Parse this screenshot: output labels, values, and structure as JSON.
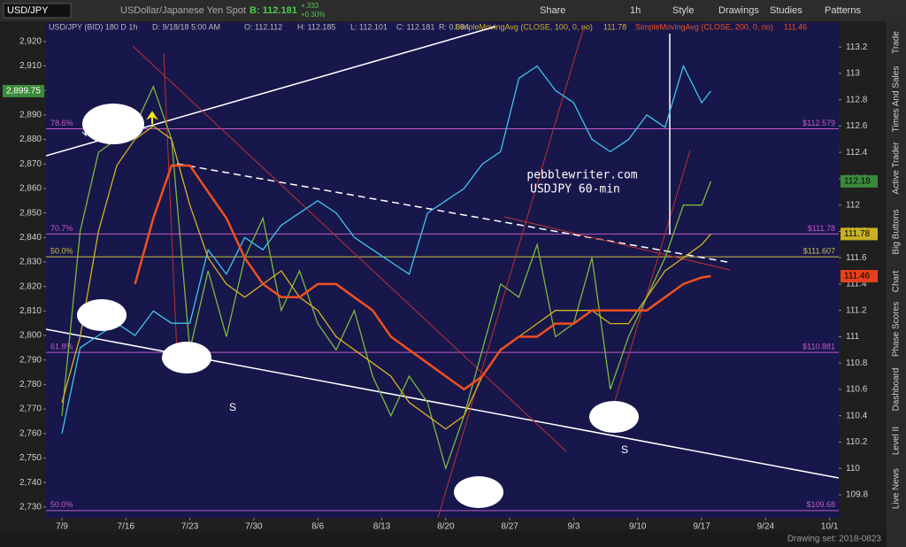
{
  "toolbar": {
    "description": "USDollar/Japanese Yen Spot",
    "bid": "B: 112.181",
    "change": "+.333",
    "change_pct": "+0.30%",
    "buttons": [
      "Share",
      "1h",
      "Style",
      "Drawings",
      "Studies",
      "Patterns"
    ]
  },
  "sidebar": {
    "tabs": [
      "Trade",
      "Times And Sales",
      "Active Trader",
      "Big Buttons",
      "Chart",
      "Phase Scores",
      "Dashboard",
      "Level II",
      "Live News"
    ]
  },
  "footer": {
    "drawing_set": "Drawing set: 2018-0823"
  },
  "chart_data": {
    "type": "line",
    "info": [
      "USD/JPY (BID) 180 D 1h",
      "D: 9/18/18 5:00 AM",
      "O: 112.112",
      "H: 112.185",
      "L: 112.101",
      "C: 112.181",
      "R: 0.084"
    ],
    "annotations": [
      "pebblewriter.com",
      "USDJPY 60-min",
      "S",
      "S"
    ],
    "x": [
      0,
      2,
      4,
      6,
      8,
      10,
      12,
      14,
      16,
      18,
      20,
      22,
      24,
      26,
      28,
      30,
      32,
      34,
      36,
      38,
      40,
      42,
      44,
      46,
      48,
      50,
      52,
      54,
      56,
      58,
      60,
      62,
      64,
      66,
      68,
      70,
      71
    ],
    "xlim": [
      -1.74,
      85
    ],
    "xticks": [
      {
        "value": 0,
        "label": "7/9"
      },
      {
        "value": 7,
        "label": "7/16"
      },
      {
        "value": 14,
        "label": "7/23"
      },
      {
        "value": 21,
        "label": "7/30"
      },
      {
        "value": 28,
        "label": "8/6"
      },
      {
        "value": 35,
        "label": "8/13"
      },
      {
        "value": 42,
        "label": "8/20"
      },
      {
        "value": 49,
        "label": "8/27"
      },
      {
        "value": 56,
        "label": "9/3"
      },
      {
        "value": 63,
        "label": "9/10"
      },
      {
        "value": 70,
        "label": "9/17"
      },
      {
        "value": 77,
        "label": "9/24"
      },
      {
        "value": 84,
        "label": "10/1"
      }
    ],
    "ylim": [
      2725.6,
      2927.9
    ],
    "yticks": [
      {
        "value": 2730,
        "label": "2,730"
      },
      {
        "value": 2740,
        "label": "2,740"
      },
      {
        "value": 2750,
        "label": "2,750"
      },
      {
        "value": 2760,
        "label": "2,760"
      },
      {
        "value": 2770,
        "label": "2,770"
      },
      {
        "value": 2780,
        "label": "2,780"
      },
      {
        "value": 2790,
        "label": "2,790"
      },
      {
        "value": 2800,
        "label": "2,800"
      },
      {
        "value": 2810,
        "label": "2,810"
      },
      {
        "value": 2820,
        "label": "2,820"
      },
      {
        "value": 2830,
        "label": "2,830"
      },
      {
        "value": 2840,
        "label": "2,840"
      },
      {
        "value": 2850,
        "label": "2,850"
      },
      {
        "value": 2860,
        "label": "2,860"
      },
      {
        "value": 2870,
        "label": "2,870"
      },
      {
        "value": 2880,
        "label": "2,880"
      },
      {
        "value": 2890,
        "label": "2,890"
      },
      {
        "value": 2900,
        "label": "2,900"
      },
      {
        "value": 2910,
        "label": "2,910"
      },
      {
        "value": 2920,
        "label": "2,920"
      }
    ],
    "y2lim": [
      109.625,
      113.389
    ],
    "y2ticks": [
      109.8,
      110,
      110.2,
      110.4,
      110.6,
      110.8,
      111,
      111.2,
      111.4,
      111.6,
      111.8,
      112,
      112.2,
      112.4,
      112.6,
      112.8,
      113,
      113.2
    ],
    "grid": false,
    "series": [
      {
        "color": "#3fc4ee",
        "values": [
          2760,
          2795,
          2800,
          2805,
          2800,
          2810,
          2805,
          2805,
          2835,
          2825,
          2840,
          2835,
          2845,
          2850,
          2855,
          2850,
          2840,
          2835,
          2830,
          2825,
          2850,
          2855,
          2860,
          2870,
          2875,
          2905,
          2910,
          2900,
          2895,
          2880,
          2875,
          2880,
          2890,
          2885,
          2910,
          2895,
          2899.75
        ]
      },
      {
        "name": "USD/JPY",
        "axis": "y2",
        "color": "#7cb83a",
        "values": [
          110.4,
          111.8,
          112.4,
          112.5,
          112.6,
          112.9,
          112.5,
          110.9,
          111.5,
          111.0,
          111.6,
          111.9,
          111.2,
          111.5,
          111.1,
          110.9,
          111.2,
          110.7,
          110.4,
          110.7,
          110.5,
          110.0,
          110.4,
          110.9,
          111.4,
          111.3,
          111.7,
          111.0,
          111.1,
          111.6,
          110.6,
          111.0,
          111.3,
          111.6,
          112.0,
          112.0,
          112.18
        ]
      },
      {
        "name": "SimpleMovingAvg (CLOSE, 100, 0, no)",
        "axis": "y2",
        "color": "#d6b222",
        "values": [
          110.5,
          111.0,
          111.8,
          112.3,
          112.5,
          112.6,
          112.5,
          112.0,
          111.6,
          111.4,
          111.3,
          111.4,
          111.5,
          111.3,
          111.2,
          111.0,
          110.9,
          110.8,
          110.7,
          110.5,
          110.4,
          110.3,
          110.4,
          110.7,
          110.9,
          111.0,
          111.1,
          111.2,
          111.2,
          111.2,
          111.1,
          111.1,
          111.3,
          111.5,
          111.6,
          111.7,
          111.78
        ]
      },
      {
        "name": "SimpleMovingAvg (CLOSE, 200, 0, no)",
        "axis": "y2",
        "color": "#f0501e",
        "values": [
          null,
          null,
          null,
          null,
          111.4,
          111.9,
          112.3,
          112.3,
          112.1,
          111.9,
          111.6,
          111.4,
          111.3,
          111.3,
          111.4,
          111.4,
          111.3,
          111.2,
          111.0,
          110.9,
          110.8,
          110.7,
          110.6,
          110.7,
          110.9,
          111.0,
          111.0,
          111.1,
          111.1,
          111.2,
          111.2,
          111.2,
          111.2,
          111.3,
          111.4,
          111.45,
          111.46
        ]
      }
    ],
    "levels": [
      {
        "label": "78.6%",
        "value": 112.579,
        "price_label": "$112.579",
        "color": "#c25cc8"
      },
      {
        "label": "70.7%",
        "value": 111.78,
        "price_label": "$111.78",
        "color": "#c25cc8"
      },
      {
        "label": "50.0%",
        "value": 111.607,
        "price_label": "$111.607",
        "color": "#c8c040"
      },
      {
        "label": "61.8%",
        "value": 110.881,
        "price_label": "$110.881",
        "color": "#c25cc8"
      },
      {
        "label": "50.0%",
        "value": 109.68,
        "price_label": "$109.68",
        "color": "#c25cc8"
      }
    ],
    "badges": [
      {
        "value": 2899.75,
        "label": "2,899.75",
        "color": "#3b8a3b"
      },
      {
        "value": 112.18,
        "label": "112.18",
        "axis": "y2",
        "color": "#3b8a3b"
      },
      {
        "value": 111.78,
        "label": "111.78",
        "axis": "y2",
        "color": "#c8b020"
      },
      {
        "value": 111.46,
        "label": "111.46",
        "axis": "y2",
        "color": "#e8401c"
      }
    ]
  }
}
